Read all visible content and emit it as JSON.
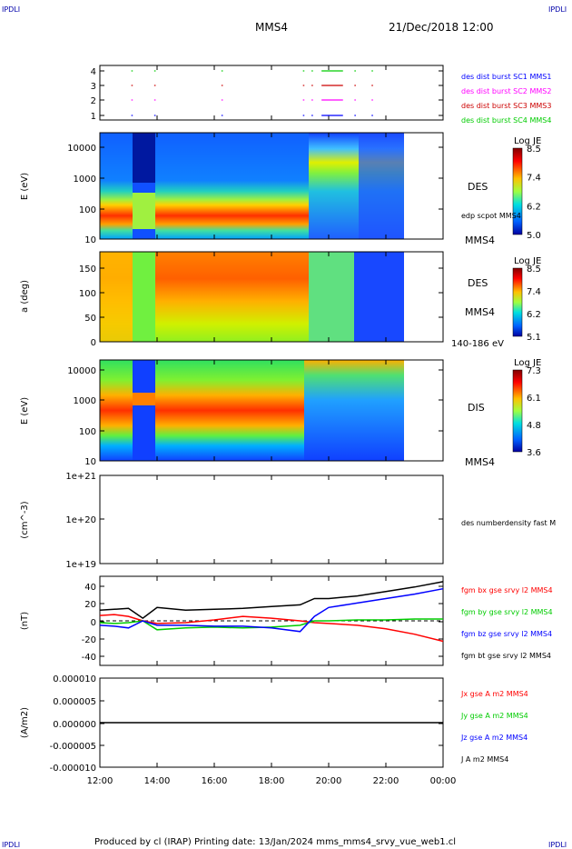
{
  "header": {
    "corner_tl": "IPDLI",
    "corner_tr": "IPDLI",
    "corner_bl": "IPDLI",
    "corner_br": "IPDLI",
    "mission": "MMS4",
    "datetime": "21/Dec/2018 12:00"
  },
  "footer": "Produced by cl (IRAP)   Printing date: 13/Jan/2024   mms_mms4_srvy_vue_web1.cl",
  "colors": {
    "blue": "#0000ff",
    "magenta": "#ff00ff",
    "red": "#ff0000",
    "green": "#00cc00",
    "black": "#000000",
    "corner_label": "#0000aa"
  },
  "chart_data": [
    {
      "type": "scatter",
      "id": "burst",
      "yticks": [
        "4",
        "3",
        "2",
        "1"
      ],
      "legend": [
        {
          "label": "des dist burst SC1 MMS1",
          "color": "#0000ff"
        },
        {
          "label": "des dist burst SC2 MMS2",
          "color": "#ff00ff"
        },
        {
          "label": "des dist burst SC3 MMS3",
          "color": "#cc0000"
        },
        {
          "label": "des dist burst SC4 MMS4",
          "color": "#00cc00"
        }
      ],
      "bursts_hours": [
        {
          "start": 13.1,
          "end": 13.15
        },
        {
          "start": 13.9,
          "end": 13.95
        },
        {
          "start": 16.25,
          "end": 16.3
        },
        {
          "start": 19.1,
          "end": 19.15
        },
        {
          "start": 19.4,
          "end": 19.45
        },
        {
          "start": 19.75,
          "end": 20.5
        },
        {
          "start": 20.9,
          "end": 20.95
        },
        {
          "start": 21.5,
          "end": 21.55
        }
      ]
    },
    {
      "type": "heatmap",
      "id": "des_energy",
      "ylabel": "E (eV)",
      "yticks": [
        "10000",
        "1000",
        "100",
        "10"
      ],
      "right_labels": [
        "DES",
        "edp scpot MMS4",
        "MMS4"
      ],
      "colorbar": {
        "title": "Log JE",
        "ticks": [
          "8.5",
          "7.4",
          "6.2",
          "5.0"
        ]
      }
    },
    {
      "type": "heatmap",
      "id": "des_pitch",
      "ylabel": "a (deg)",
      "yticks": [
        "150",
        "100",
        "50",
        "0"
      ],
      "right_labels": [
        "DES",
        "MMS4",
        "140-186 eV"
      ],
      "colorbar": {
        "title": "Log JE",
        "ticks": [
          "8.5",
          "7.4",
          "6.2",
          "5.1"
        ]
      }
    },
    {
      "type": "heatmap",
      "id": "dis_energy",
      "ylabel": "E (eV)",
      "yticks": [
        "10000",
        "1000",
        "100",
        "10"
      ],
      "right_labels": [
        "DIS",
        "MMS4"
      ],
      "colorbar": {
        "title": "Log JE",
        "ticks": [
          "7.3",
          "6.1",
          "4.8",
          "3.6"
        ]
      }
    },
    {
      "type": "line",
      "id": "density",
      "ylabel": "(cm^-3)",
      "yticks": [
        "1e+21",
        "1e+20",
        "1e+19"
      ],
      "legend": [
        {
          "label": "des numberdensity fast M",
          "color": "#000000"
        }
      ]
    },
    {
      "type": "line",
      "id": "bfield",
      "ylabel": "(nT)",
      "yticks": [
        "40",
        "20",
        "0",
        "-20",
        "-40"
      ],
      "ylim": [
        -50,
        50
      ],
      "legend": [
        {
          "label": "fgm bx gse srvy l2 MMS4",
          "color": "#ff0000"
        },
        {
          "label": "fgm by gse srvy l2 MMS4",
          "color": "#00cc00"
        },
        {
          "label": "fgm bz gse srvy l2 MMS4",
          "color": "#0000ff"
        },
        {
          "label": "fgm bt gse srvy l2 MMS4",
          "color": "#000000"
        }
      ],
      "x_hours": [
        12,
        12.5,
        13,
        13.5,
        14,
        15,
        16,
        17,
        18,
        19,
        19.5,
        20,
        21,
        22,
        23,
        24
      ],
      "series": [
        {
          "name": "fgm bx gse srvy l2 MMS4",
          "values": [
            6,
            7,
            5,
            0,
            -3,
            -2,
            1,
            5,
            3,
            0,
            -2,
            -3,
            -5,
            -9,
            -15,
            -23
          ]
        },
        {
          "name": "fgm by gse srvy l2 MMS4",
          "values": [
            -2,
            -3,
            -2,
            0,
            -10,
            -8,
            -7,
            -8,
            -7,
            -5,
            0,
            0,
            1,
            1,
            2,
            2
          ]
        },
        {
          "name": "fgm bz gse srvy l2 MMS4",
          "values": [
            -5,
            -6,
            -8,
            0,
            -5,
            -5,
            -6,
            -6,
            -8,
            -12,
            5,
            15,
            20,
            25,
            30,
            36
          ]
        },
        {
          "name": "fgm bt gse srvy l2 MMS4",
          "values": [
            12,
            13,
            14,
            3,
            15,
            12,
            13,
            14,
            16,
            18,
            25,
            25,
            28,
            33,
            38,
            44
          ]
        }
      ]
    },
    {
      "type": "line",
      "id": "current",
      "ylabel": "(A/m2)",
      "yticks": [
        "0.000010",
        "0.000005",
        "0.000000",
        "-0.000005",
        "-0.000010"
      ],
      "ylim": [
        -1e-05,
        1e-05
      ],
      "legend": [
        {
          "label": "Jx gse A m2 MMS4",
          "color": "#ff0000"
        },
        {
          "label": "Jy gse A m2 MMS4",
          "color": "#00cc00"
        },
        {
          "label": "Jz gse A m2 MMS4",
          "color": "#0000ff"
        },
        {
          "label": "J A m2 MMS4",
          "color": "#000000"
        }
      ]
    }
  ],
  "xaxis": {
    "ticks": [
      "12:00",
      "14:00",
      "16:00",
      "18:00",
      "20:00",
      "22:00",
      "00:00"
    ]
  }
}
